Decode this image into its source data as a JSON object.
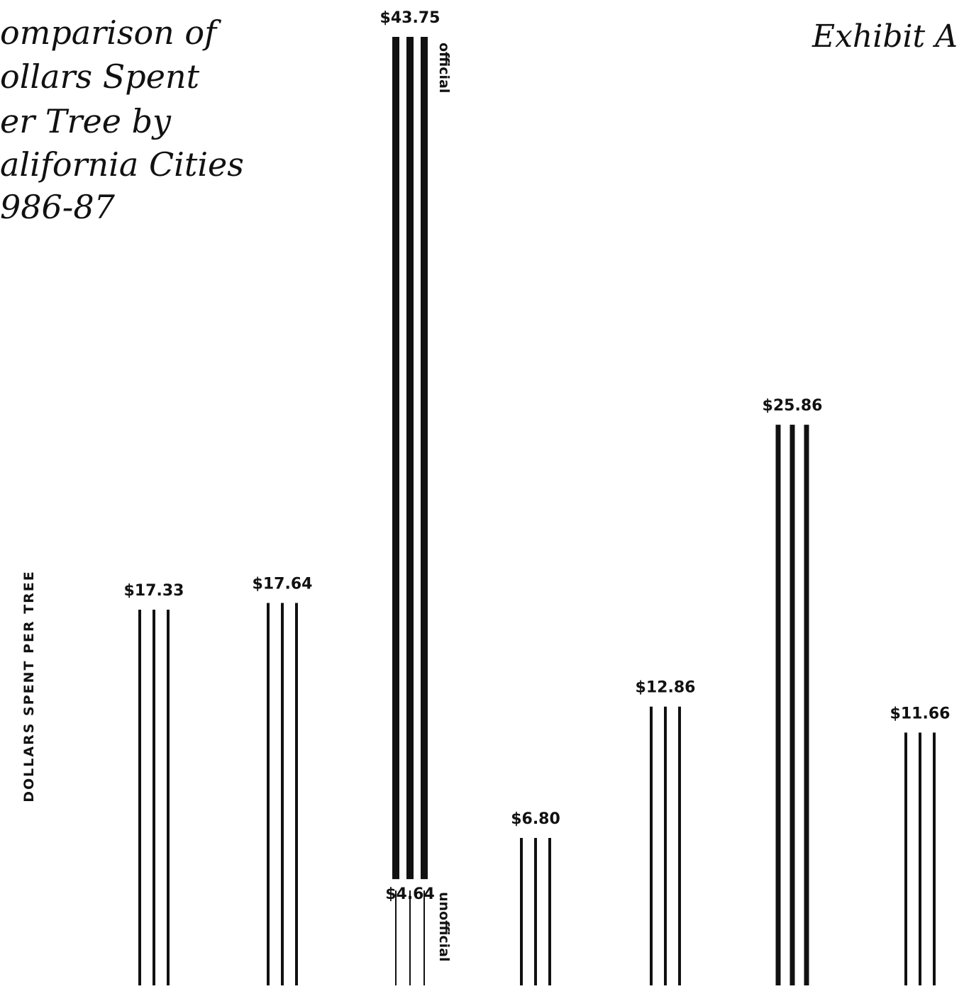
{
  "exhibit": "Exhibit A",
  "chart_data": {
    "type": "bar",
    "title_lines": [
      "omparison of",
      "ollars Spent",
      "er Tree by",
      "alifornia Cities",
      "986-87"
    ],
    "ylabel": "DOLLARS SPENT PER TREE",
    "ylim": [
      0,
      45
    ],
    "grid": false,
    "legend": "none",
    "values": [
      17.33,
      17.64,
      43.75,
      6.8,
      12.86,
      25.86,
      11.66
    ],
    "value_labels": [
      "$17.33",
      "$17.64",
      "$43.75",
      "$6.80",
      "$12.86",
      "$25.86",
      "$11.66"
    ],
    "series_labels": {
      "official": "official",
      "unofficial": "unofficial"
    },
    "split_bar": {
      "index": 2,
      "unofficial_value": 4.64,
      "unofficial_label": "$4.64"
    },
    "colors": {
      "bar": "#111111",
      "bar_shade": "#555555"
    }
  }
}
